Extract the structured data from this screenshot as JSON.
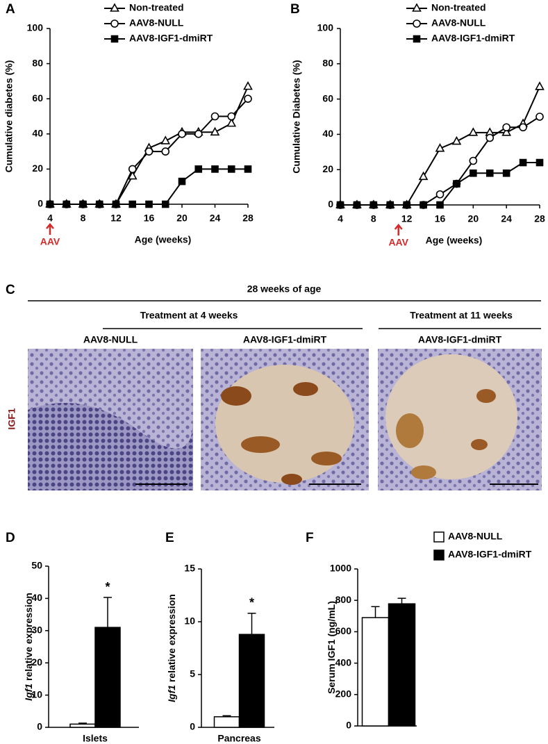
{
  "chart_data": [
    {
      "type": "line",
      "panel": "A",
      "xlabel": "Age (weeks)",
      "ylabel": "Cumulative diabetes (%)",
      "x": [
        4,
        6,
        8,
        10,
        12,
        14,
        16,
        18,
        20,
        22,
        24,
        26,
        28
      ],
      "xlim": [
        4,
        28
      ],
      "xticks": [
        4,
        8,
        12,
        16,
        20,
        24,
        28
      ],
      "ylim": [
        0,
        100
      ],
      "yticks": [
        0,
        20,
        40,
        60,
        80,
        100
      ],
      "annotation": {
        "text": "AAV",
        "x": 4,
        "color": "#d42a2a"
      },
      "series": [
        {
          "name": "Non-treated",
          "color": "#000000",
          "marker": "triangle",
          "marker_fill": "#ffffff",
          "values": [
            0,
            0,
            0,
            0,
            0,
            16,
            32,
            36,
            41,
            41,
            41,
            46,
            67
          ]
        },
        {
          "name": "AAV8-NULL",
          "color": "#000000",
          "marker": "circle",
          "marker_fill": "#ffffff",
          "values": [
            0,
            0,
            0,
            0,
            0,
            20,
            30,
            30,
            40,
            40,
            50,
            50,
            60
          ]
        },
        {
          "name": "AAV8-IGF1-dmiRT",
          "color": "#000000",
          "marker": "square",
          "marker_fill": "#000000",
          "values": [
            0,
            0,
            0,
            0,
            0,
            0,
            0,
            0,
            13,
            20,
            20,
            20,
            20
          ]
        }
      ]
    },
    {
      "type": "line",
      "panel": "B",
      "xlabel": "Age (weeks)",
      "ylabel": "Cumulative Diabetes (%)",
      "x": [
        4,
        6,
        8,
        10,
        12,
        14,
        16,
        18,
        20,
        22,
        24,
        26,
        28
      ],
      "xlim": [
        4,
        28
      ],
      "xticks": [
        4,
        8,
        12,
        16,
        20,
        24,
        28
      ],
      "ylim": [
        0,
        100
      ],
      "yticks": [
        0,
        20,
        40,
        60,
        80,
        100
      ],
      "annotation": {
        "text": "AAV",
        "x": 11,
        "color": "#d42a2a"
      },
      "series": [
        {
          "name": "Non-treated",
          "color": "#000000",
          "marker": "triangle",
          "marker_fill": "#ffffff",
          "values": [
            0,
            0,
            0,
            0,
            0,
            16,
            32,
            36,
            41,
            41,
            41,
            46,
            67
          ]
        },
        {
          "name": "AAV8-NULL",
          "color": "#000000",
          "marker": "circle",
          "marker_fill": "#ffffff",
          "values": [
            0,
            0,
            0,
            0,
            0,
            0,
            6,
            12,
            25,
            38,
            44,
            44,
            50
          ]
        },
        {
          "name": "AAV8-IGF1-dmiRT",
          "color": "#000000",
          "marker": "square",
          "marker_fill": "#000000",
          "values": [
            0,
            0,
            0,
            0,
            0,
            0,
            0,
            12,
            18,
            18,
            18,
            24,
            24
          ]
        }
      ]
    },
    {
      "type": "bar",
      "panel": "D",
      "ylabel_gene": "Igf1",
      "ylabel": "relative expression",
      "categories": [
        "Islets"
      ],
      "ylim": [
        0,
        50
      ],
      "yticks": [
        0,
        10,
        20,
        30,
        40,
        50
      ],
      "annotation": "*",
      "series": [
        {
          "color": "#ffffff",
          "values": [
            1.0
          ],
          "errors": [
            0.3
          ]
        },
        {
          "color": "#000000",
          "values": [
            31
          ],
          "errors": [
            9.3
          ]
        }
      ]
    },
    {
      "type": "bar",
      "panel": "E",
      "ylabel_gene": "Igf1",
      "ylabel": "relative expression",
      "categories": [
        "Pancreas"
      ],
      "ylim": [
        0,
        15
      ],
      "yticks": [
        0,
        5,
        10,
        15
      ],
      "annotation": "*",
      "series": [
        {
          "color": "#ffffff",
          "values": [
            1.0
          ],
          "errors": [
            0.1
          ]
        },
        {
          "color": "#000000",
          "values": [
            8.8
          ],
          "errors": [
            2.0
          ]
        }
      ]
    },
    {
      "type": "bar",
      "panel": "F",
      "ylabel": "Serum IGF1 (ng/mL)",
      "categories": [
        null
      ],
      "ylim": [
        0,
        1000
      ],
      "yticks": [
        0,
        200,
        400,
        600,
        800,
        1000
      ],
      "legend": true,
      "series": [
        {
          "name": "AAV8-NULL",
          "color": "#ffffff",
          "values": [
            690
          ],
          "errors": [
            70
          ]
        },
        {
          "name": "AAV8-IGF1-dmiRT",
          "color": "#000000",
          "values": [
            778
          ],
          "errors": [
            35
          ]
        }
      ]
    }
  ],
  "panel_c": {
    "panel": "C",
    "title": "28 weeks of age",
    "row_label": "IGF1",
    "groups": [
      {
        "label": "Treatment at 4 weeks",
        "images": [
          "AAV8-NULL",
          "AAV8-IGF1-dmiRT"
        ]
      },
      {
        "label": "Treatment at 11 weeks",
        "images": [
          "AAV8-IGF1-dmiRT"
        ]
      }
    ]
  }
}
